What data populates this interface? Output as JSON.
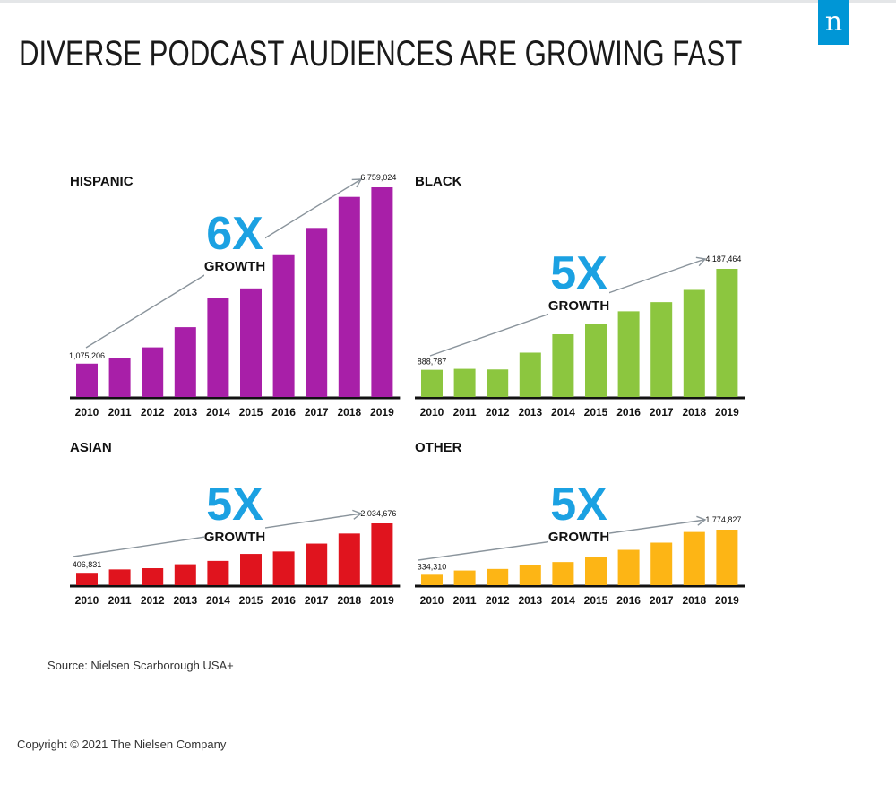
{
  "header": {
    "title": "DIVERSE PODCAST AUDIENCES ARE GROWING FAST",
    "logo_text": "n"
  },
  "footer": {
    "source": "Source: Nielsen Scarborough USA+",
    "copyright": "Copyright © 2021 The Nielsen Company"
  },
  "chart_data": [
    {
      "type": "bar",
      "title": "HISPANIC",
      "multiplier": "6X",
      "growth_label": "GROWTH",
      "color": "#a81fa8",
      "categories": [
        "2010",
        "2011",
        "2012",
        "2013",
        "2014",
        "2015",
        "2016",
        "2017",
        "2018",
        "2019"
      ],
      "values": [
        1075206,
        1260000,
        1600000,
        2250000,
        3200000,
        3500000,
        4600000,
        5450000,
        6450000,
        6759024
      ],
      "first_label": "1,075,206",
      "last_label": "6,759,024"
    },
    {
      "type": "bar",
      "title": "BLACK",
      "multiplier": "5X",
      "growth_label": "GROWTH",
      "color": "#8cc63f",
      "categories": [
        "2010",
        "2011",
        "2012",
        "2013",
        "2014",
        "2015",
        "2016",
        "2017",
        "2018",
        "2019"
      ],
      "values": [
        888787,
        920000,
        900000,
        1450000,
        2050000,
        2400000,
        2800000,
        3100000,
        3500000,
        4187464
      ],
      "first_label": "888,787",
      "last_label": "4,187,464"
    },
    {
      "type": "bar",
      "title": "ASIAN",
      "multiplier": "5X",
      "growth_label": "GROWTH",
      "color": "#e0141e",
      "categories": [
        "2010",
        "2011",
        "2012",
        "2013",
        "2014",
        "2015",
        "2016",
        "2017",
        "2018",
        "2019"
      ],
      "values": [
        406831,
        520000,
        560000,
        690000,
        800000,
        1030000,
        1110000,
        1370000,
        1700000,
        2034676
      ],
      "first_label": "406,831",
      "last_label": "2,034,676"
    },
    {
      "type": "bar",
      "title": "OTHER",
      "multiplier": "5X",
      "growth_label": "GROWTH",
      "color": "#fdb515",
      "categories": [
        "2010",
        "2011",
        "2012",
        "2013",
        "2014",
        "2015",
        "2016",
        "2017",
        "2018",
        "2019"
      ],
      "values": [
        334310,
        470000,
        520000,
        650000,
        740000,
        900000,
        1130000,
        1360000,
        1700000,
        1774827
      ],
      "first_label": "334,310",
      "last_label": "1,774,827"
    }
  ]
}
